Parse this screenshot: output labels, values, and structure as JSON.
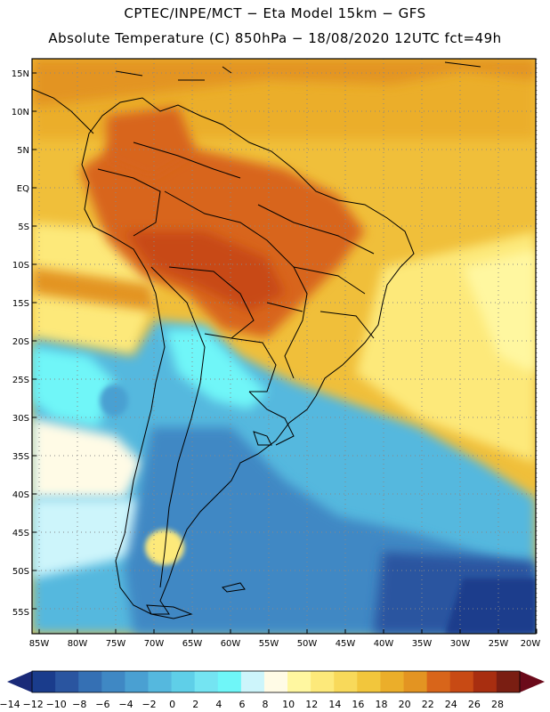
{
  "header": {
    "line1": "CPTEC/INPE/MCT −  Eta Model 15km − GFS",
    "line2": "Absolute Temperature (C) 850hPa − 18/08/2020 12UTC fct=49h"
  },
  "latitude_labels": [
    "15N",
    "10N",
    "5N",
    "EQ",
    "5S",
    "10S",
    "15S",
    "20S",
    "25S",
    "30S",
    "35S",
    "40S",
    "45S",
    "50S",
    "55S"
  ],
  "longitude_labels": [
    "85W",
    "80W",
    "75W",
    "70W",
    "65W",
    "60W",
    "55W",
    "50W",
    "45W",
    "40W",
    "35W",
    "30W",
    "25W",
    "20W"
  ],
  "colorbar": {
    "tick_labels": [
      "−14",
      "−12",
      "−10",
      "−8",
      "−6",
      "−4",
      "−2",
      "0",
      "2",
      "4",
      "6",
      "8",
      "10",
      "12",
      "14",
      "16",
      "18",
      "20",
      "22",
      "24",
      "26",
      "28"
    ],
    "colors": [
      "#1a3c8c",
      "#2a55a0",
      "#3570b4",
      "#3f88c4",
      "#4aa0d2",
      "#55b8de",
      "#5fcfe8",
      "#74e4f2",
      "#6ff6f8",
      "#cdf5fb",
      "#fffbe6",
      "#fff7a0",
      "#fde97a",
      "#f8d95a",
      "#f2c63c",
      "#ebae2a",
      "#e39422",
      "#d8651a",
      "#c84a14",
      "#a82e10",
      "#7a1e12"
    ],
    "under_color": "#1a2a78",
    "over_color": "#6b0a1a"
  },
  "map": {
    "ocean_base_color": "#f2c63c",
    "gridline_color": "#888888",
    "coast_color": "#000000"
  }
}
